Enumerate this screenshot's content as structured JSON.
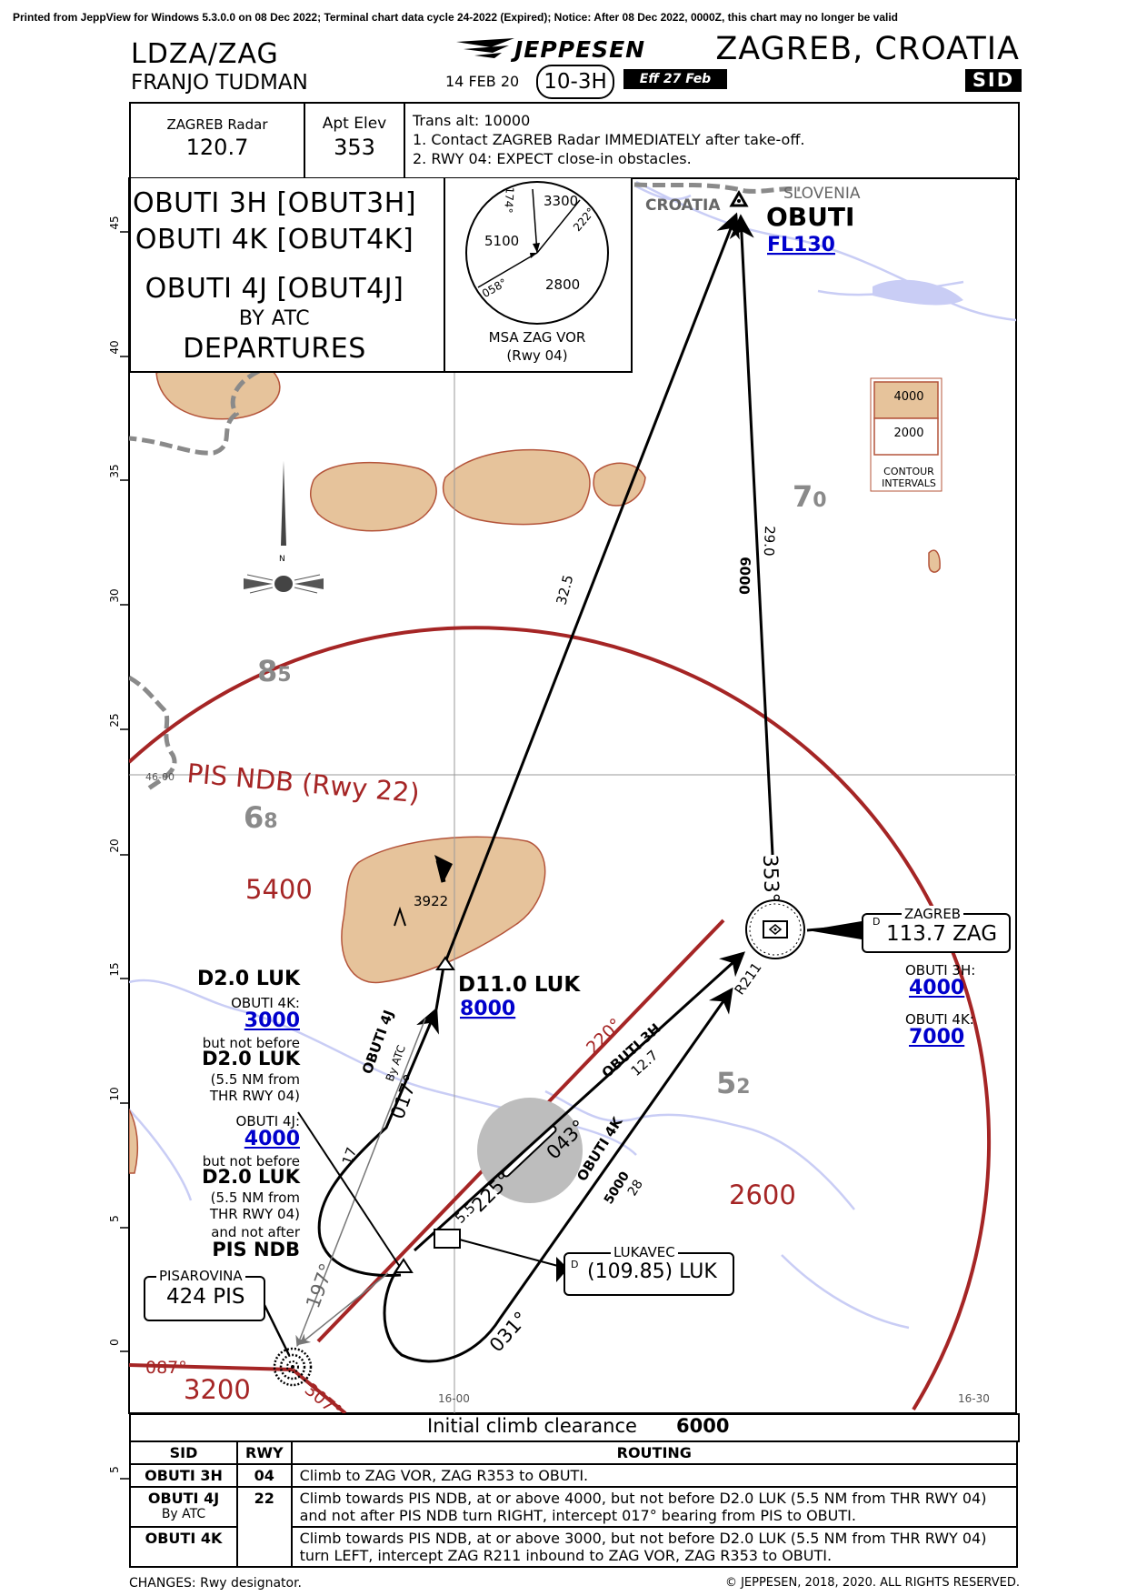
{
  "print_notice": "Printed from JeppView for Windows 5.3.0.0 on 08 Dec 2022; Terminal chart data cycle 24-2022 (Expired); Notice: After 08 Dec 2022, 0000Z, this chart may no longer be valid",
  "header": {
    "airport_code": "LDZA/ZAG",
    "airport_name": "FRANJO TUDMAN",
    "brand": "JEPPESEN",
    "date": "14 FEB 20",
    "chart_index": "10-3H",
    "effective": "Eff 27 Feb",
    "city": "ZAGREB, CROATIA",
    "chart_type": "SID"
  },
  "comm": {
    "radar_label": "ZAGREB Radar",
    "radar_freq": "120.7",
    "elev_label": "Apt Elev",
    "elev_value": "353",
    "trans_alt": "Trans alt: 10000",
    "note1": "1. Contact ZAGREB Radar IMMEDIATELY after take-off.",
    "note2": "2. RWY 04: EXPECT close-in obstacles."
  },
  "procedure": {
    "line1": "OBUTI 3H [OBUT3H]",
    "line2": "OBUTI 4K [OBUT4K]",
    "line3": "OBUTI 4J [OBUT4J]",
    "by_atc": "BY ATC",
    "departures": "DEPARTURES"
  },
  "msa": {
    "alt_ne": "3300",
    "alt_w": "5100",
    "alt_s": "2800",
    "brg_174": "174°",
    "brg_222": "222°",
    "brg_058": "058°",
    "title": "MSA ZAG VOR",
    "subtitle": "(Rwy 04)"
  },
  "contour": {
    "high": "4000",
    "low": "2000",
    "label1": "CONTOUR",
    "label2": "INTERVALS"
  },
  "map": {
    "lat_labels": [
      "45",
      "40",
      "35",
      "30",
      "25",
      "20",
      "15",
      "10",
      "5",
      "0",
      "5"
    ],
    "grid_lon1": "16-00",
    "grid_lon2": "16-30",
    "grid_lat": "46-00",
    "country_croatia": "CROATIA",
    "country_slovenia": "SLOVENIA",
    "obuti_name": "OBUTI",
    "obuti_fl": "FL130",
    "leg_obuti_alt": "6000",
    "leg_obuti_dist": "29.0",
    "leg_d11_dist": "32.5",
    "radial_353": "353°",
    "zag_name": "ZAGREB",
    "zag_freq": "113.7 ZAG",
    "dme_d": "D",
    "zag_3h_label": "OBUTI 3H:",
    "zag_3h_alt": "4000",
    "zag_4k_label": "OBUTI 4K:",
    "zag_4k_alt": "7000",
    "pis_arc_label": "PIS NDB (Rwy 22)",
    "mora_85": "85",
    "mora_68": "68",
    "mora_52": "52",
    "mora_70": "70",
    "alt_5400": "5400",
    "alt_2600": "2600",
    "alt_3200": "3200",
    "obstacle": "3922",
    "d11_name": "D11.0 LUK",
    "d11_alt": "8000",
    "d2_title": "D2.0 LUK",
    "d2_4k_label": "OBUTI 4K:",
    "d2_4k_alt": "3000",
    "d2_nb1": "but not before",
    "d2_nb1_fix": "D2.0 LUK",
    "d2_nb1_note1": "(5.5 NM from",
    "d2_nb1_note2": "THR RWY 04)",
    "d2_4j_label": "OBUTI 4J:",
    "d2_4j_alt": "4000",
    "d2_nb2": "but not before",
    "d2_nb2_fix": "D2.0 LUK",
    "d2_nb2_note1": "(5.5 NM from",
    "d2_nb2_note2": "THR RWY 04)",
    "d2_na": "and not after",
    "d2_na_fix": "PIS NDB",
    "pis_name": "PISAROVINA",
    "pis_freq": "424 PIS",
    "luk_name": "LUKAVEC",
    "luk_freq": "(109.85) LUK",
    "route_4j": "OBUTI 4J",
    "route_4j_atc": "By ATC",
    "brg_017": "017°",
    "dist_17": "17",
    "route_3h": "OBUTI 3H",
    "dist_127": "12.7",
    "radial_220": "220°",
    "radial_043": "043°",
    "radial_225": "225°",
    "dist_55": "5.5",
    "route_4k": "OBUTI 4K",
    "alt_5000": "5000",
    "dist_28": "28",
    "brg_031": "031°",
    "brg_197": "197°",
    "brg_087": "087°",
    "brg_307": "307°",
    "r211": "R211",
    "north": "N"
  },
  "initial_climb": {
    "label": "Initial climb clearance",
    "value": "6000"
  },
  "table": {
    "headers": [
      "SID",
      "RWY",
      "ROUTING"
    ],
    "rows": [
      {
        "sid": "OBUTI 3H",
        "sid_sub": "",
        "rwy": "04",
        "routing": "Climb to ZAG VOR, ZAG R353 to OBUTI."
      },
      {
        "sid": "OBUTI 4J",
        "sid_sub": "By ATC",
        "rwy": "22",
        "routing": "Climb towards PIS NDB, at or above 4000, but not before D2.0 LUK (5.5 NM from THR RWY 04) and not after PIS NDB turn RIGHT, intercept 017° bearing from PIS to OBUTI."
      },
      {
        "sid": "OBUTI 4K",
        "sid_sub": "",
        "rwy": "",
        "routing": "Climb towards PIS NDB, at or above 3000, but not before D2.0 LUK (5.5 NM from THR RWY 04) turn LEFT, intercept ZAG R211 inbound to ZAG VOR, ZAG R353 to OBUTI."
      }
    ]
  },
  "footer": {
    "changes": "CHANGES:  Rwy designator.",
    "copyright": "© JEPPESEN, 2018, 2020. ALL RIGHTS RESERVED."
  }
}
